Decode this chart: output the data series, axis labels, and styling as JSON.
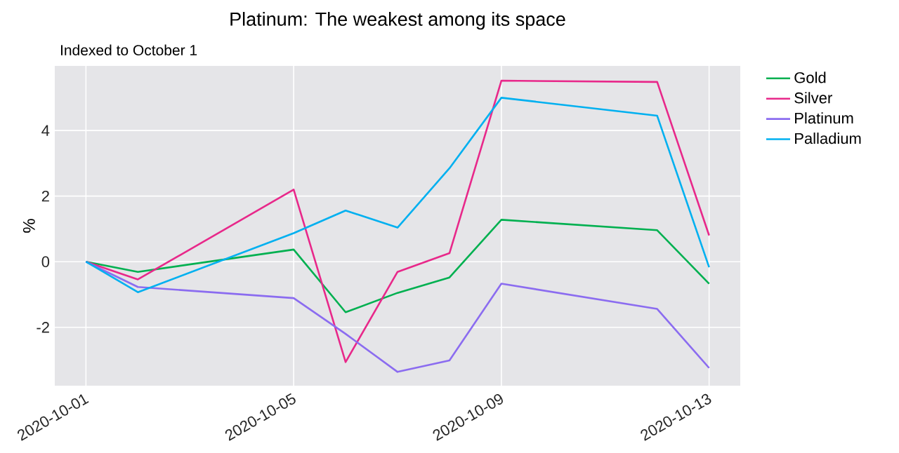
{
  "chart_data": {
    "type": "line",
    "title": "Platinum: The weakest among its space",
    "subtitle": "Indexed to October 1",
    "ylabel": "%",
    "x": [
      "2020-10-01",
      "2020-10-02",
      "2020-10-05",
      "2020-10-06",
      "2020-10-07",
      "2020-10-08",
      "2020-10-09",
      "2020-10-12",
      "2020-10-13"
    ],
    "series": [
      {
        "name": "Gold",
        "color": "#00b050",
        "values": [
          0,
          -0.31,
          0.37,
          -1.54,
          -0.95,
          -0.48,
          1.28,
          0.96,
          -0.67
        ]
      },
      {
        "name": "Silver",
        "color": "#e8288a",
        "values": [
          0,
          -0.54,
          2.2,
          -3.06,
          -0.31,
          0.26,
          5.52,
          5.48,
          0.8
        ]
      },
      {
        "name": "Platinum",
        "color": "#8b6cf0",
        "values": [
          0,
          -0.77,
          -1.11,
          -2.2,
          -3.36,
          -3.01,
          -0.67,
          -1.44,
          -3.24
        ]
      },
      {
        "name": "Palladium",
        "color": "#00b0f0",
        "values": [
          0,
          -0.93,
          0.87,
          1.56,
          1.04,
          2.85,
          5.0,
          4.45,
          -0.17
        ]
      }
    ],
    "xlim": [
      "2020-09-30T09:36",
      "2020-10-13T14:24"
    ],
    "ylim": [
      -3.78,
      5.97
    ],
    "xticks": [
      "2020-10-01",
      "2020-10-05",
      "2020-10-09",
      "2020-10-13"
    ],
    "yticks": [
      -2,
      0,
      2,
      4
    ],
    "grid": true,
    "legend": "right",
    "marker": "none",
    "line_style": "solid"
  }
}
